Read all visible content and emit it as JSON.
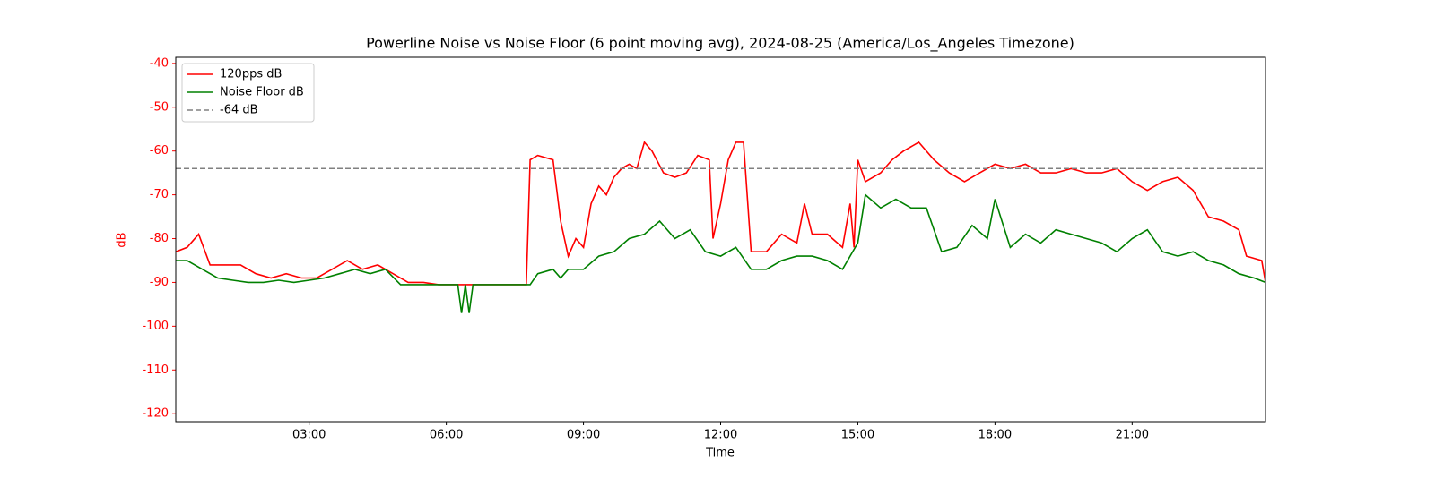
{
  "chart_data": {
    "type": "line",
    "title": "Powerline Noise vs Noise Floor (6 point moving avg), 2024-08-25 (America/Los_Angeles Timezone)",
    "xlabel": "Time",
    "ylabel": "dB",
    "xlim": [
      "00:05",
      "23:55"
    ],
    "xticks": [
      "03:00",
      "06:00",
      "09:00",
      "12:00",
      "15:00",
      "18:00",
      "21:00"
    ],
    "ylim": [
      -121.8,
      -38.6
    ],
    "yticks": [
      -40,
      -50,
      -60,
      -70,
      -80,
      -90,
      -100,
      -110,
      -120
    ],
    "legend": "upper left",
    "series": [
      {
        "name": "120pps dB",
        "color": "#ff0000",
        "x": [
          "00:05",
          "00:20",
          "00:35",
          "00:50",
          "01:10",
          "01:30",
          "01:50",
          "02:10",
          "02:30",
          "02:50",
          "03:10",
          "03:30",
          "03:50",
          "04:10",
          "04:30",
          "04:50",
          "05:10",
          "05:30",
          "05:50",
          "06:10",
          "06:30",
          "07:00",
          "07:30",
          "07:45",
          "07:50",
          "08:00",
          "08:20",
          "08:30",
          "08:40",
          "08:50",
          "09:00",
          "09:10",
          "09:20",
          "09:30",
          "09:40",
          "09:50",
          "10:00",
          "10:10",
          "10:20",
          "10:30",
          "10:45",
          "11:00",
          "11:15",
          "11:30",
          "11:45",
          "11:50",
          "12:00",
          "12:10",
          "12:20",
          "12:30",
          "12:40",
          "13:00",
          "13:20",
          "13:40",
          "13:50",
          "14:00",
          "14:20",
          "14:40",
          "14:50",
          "14:55",
          "15:00",
          "15:10",
          "15:30",
          "15:45",
          "16:00",
          "16:20",
          "16:40",
          "17:00",
          "17:20",
          "17:40",
          "18:00",
          "18:20",
          "18:40",
          "19:00",
          "19:20",
          "19:40",
          "20:00",
          "20:20",
          "20:40",
          "21:00",
          "21:20",
          "21:40",
          "22:00",
          "22:20",
          "22:40",
          "23:00",
          "23:20",
          "23:30",
          "23:50",
          "23:55"
        ],
        "values": [
          -83,
          -82,
          -79,
          -86,
          -86,
          -86,
          -88,
          -89,
          -88,
          -89,
          -89,
          -87,
          -85,
          -87,
          -86,
          -88,
          -90,
          -90,
          -90.5,
          -90.5,
          -90.5,
          -90.5,
          -90.5,
          -90.5,
          -62,
          -61,
          -62,
          -76,
          -84,
          -80,
          -82,
          -72,
          -68,
          -70,
          -66,
          -64,
          -63,
          -64,
          -58,
          -60,
          -65,
          -66,
          -65,
          -61,
          -62,
          -80,
          -72,
          -62,
          -58,
          -58,
          -83,
          -83,
          -79,
          -81,
          -72,
          -79,
          -79,
          -82,
          -72,
          -82,
          -62,
          -67,
          -65,
          -62,
          -60,
          -58,
          -62,
          -65,
          -67,
          -65,
          -63,
          -64,
          -63,
          -65,
          -65,
          -64,
          -65,
          -65,
          -64,
          -67,
          -69,
          -67,
          -66,
          -69,
          -75,
          -76,
          -78,
          -84,
          -85,
          -90
        ]
      },
      {
        "name": "Noise Floor dB",
        "color": "#008000",
        "x": [
          "00:05",
          "00:20",
          "00:40",
          "01:00",
          "01:20",
          "01:40",
          "02:00",
          "02:20",
          "02:40",
          "03:00",
          "03:20",
          "03:40",
          "04:00",
          "04:20",
          "04:40",
          "05:00",
          "05:30",
          "06:00",
          "06:15",
          "06:20",
          "06:25",
          "06:30",
          "06:35",
          "07:00",
          "07:30",
          "07:50",
          "08:00",
          "08:20",
          "08:30",
          "08:40",
          "09:00",
          "09:20",
          "09:40",
          "10:00",
          "10:20",
          "10:40",
          "11:00",
          "11:20",
          "11:40",
          "12:00",
          "12:20",
          "12:40",
          "13:00",
          "13:20",
          "13:40",
          "14:00",
          "14:20",
          "14:40",
          "15:00",
          "15:10",
          "15:30",
          "15:50",
          "16:10",
          "16:30",
          "16:50",
          "17:10",
          "17:30",
          "17:50",
          "18:00",
          "18:20",
          "18:40",
          "19:00",
          "19:20",
          "19:40",
          "20:00",
          "20:20",
          "20:40",
          "21:00",
          "21:20",
          "21:40",
          "22:00",
          "22:20",
          "22:40",
          "23:00",
          "23:20",
          "23:40",
          "23:55"
        ],
        "values": [
          -85,
          -85,
          -87,
          -89,
          -89.5,
          -90,
          -90,
          -89.5,
          -90,
          -89.5,
          -89,
          -88,
          -87,
          -88,
          -87,
          -90.5,
          -90.5,
          -90.5,
          -90.5,
          -97,
          -90.5,
          -97,
          -90.5,
          -90.5,
          -90.5,
          -90.5,
          -88,
          -87,
          -89,
          -87,
          -87,
          -84,
          -83,
          -80,
          -79,
          -76,
          -80,
          -78,
          -83,
          -84,
          -82,
          -87,
          -87,
          -85,
          -84,
          -84,
          -85,
          -87,
          -81,
          -70,
          -73,
          -71,
          -73,
          -73,
          -83,
          -82,
          -77,
          -80,
          -71,
          -82,
          -79,
          -81,
          -78,
          -79,
          -80,
          -81,
          -83,
          -80,
          -78,
          -83,
          -84,
          -83,
          -85,
          -86,
          -88,
          -89,
          -90
        ]
      },
      {
        "name": "-64 dB",
        "color": "#808080",
        "value": -64,
        "dashed": true
      }
    ]
  }
}
